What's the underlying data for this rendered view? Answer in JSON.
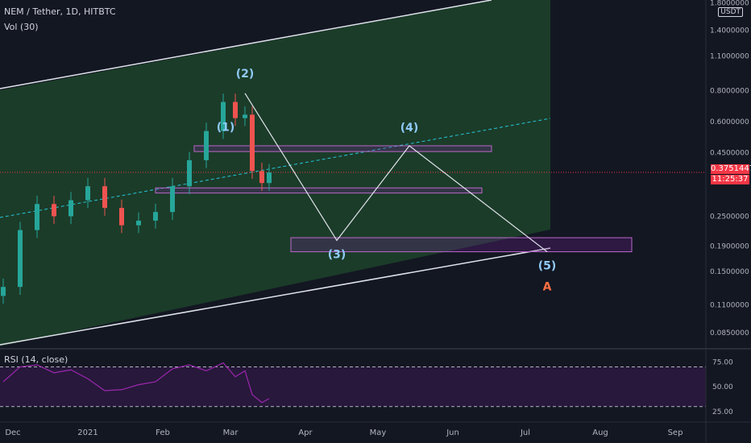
{
  "header": {
    "symbol": "NEM / Tether, 1D, HITBTC",
    "volume_indicator": "Vol (30)",
    "rsi_indicator": "RSI (14, close)",
    "currency": "USDT"
  },
  "price_axis": {
    "ticks": [
      {
        "value": 1.8,
        "label": "1.8000000"
      },
      {
        "value": 1.4,
        "label": "1.4000000"
      },
      {
        "value": 1.1,
        "label": "1.1000000"
      },
      {
        "value": 0.8,
        "label": "0.8000000"
      },
      {
        "value": 0.6,
        "label": "0.6000000"
      },
      {
        "value": 0.45,
        "label": "0.4500000"
      },
      {
        "value": 0.25,
        "label": "0.2500000"
      },
      {
        "value": 0.19,
        "label": "0.1900000"
      },
      {
        "value": 0.15,
        "label": "0.1500000"
      },
      {
        "value": 0.11,
        "label": "0.1100000"
      },
      {
        "value": 0.085,
        "label": "0.0850000"
      }
    ],
    "current_price": "0.3751447",
    "countdown": "11:25:37"
  },
  "rsi_axis": {
    "ticks": [
      {
        "value": 75,
        "label": "75.00"
      },
      {
        "value": 50,
        "label": "50.00"
      },
      {
        "value": 25,
        "label": "25.00"
      }
    ]
  },
  "time_axis": {
    "labels": [
      "Dec",
      "2021",
      "Feb",
      "Mar",
      "Apr",
      "May",
      "Jun",
      "Jul",
      "Aug",
      "Sep"
    ]
  },
  "wave_labels": [
    "(1)",
    "(2)",
    "(3)",
    "(4)",
    "(5)",
    "A"
  ],
  "chart_data": {
    "type": "candlestick",
    "title": "NEM / Tether, 1D, HITBTC",
    "scale": "log",
    "ylim": [
      0.075,
      1.85
    ],
    "rsi_ylim": [
      20,
      85
    ],
    "rsi_bands": [
      70,
      30
    ],
    "current_price": 0.3751447,
    "price_series": {
      "name": "NEM / Tether",
      "date": [
        "2020-11-27",
        "2020-12-04",
        "2020-12-11",
        "2020-12-18",
        "2020-12-25",
        "2021-01-01",
        "2021-01-08",
        "2021-01-15",
        "2021-01-22",
        "2021-01-29",
        "2021-02-05",
        "2021-02-12",
        "2021-02-19",
        "2021-02-26",
        "2021-03-03",
        "2021-03-07",
        "2021-03-10",
        "2021-03-14",
        "2021-03-17"
      ],
      "close": [
        0.13,
        0.22,
        0.28,
        0.25,
        0.29,
        0.33,
        0.27,
        0.23,
        0.24,
        0.26,
        0.33,
        0.42,
        0.55,
        0.72,
        0.62,
        0.64,
        0.38,
        0.34,
        0.375
      ]
    },
    "rsi_series": {
      "name": "RSI (14, close)",
      "date": [
        "2020-11-27",
        "2020-12-04",
        "2020-12-11",
        "2020-12-18",
        "2020-12-25",
        "2021-01-01",
        "2021-01-08",
        "2021-01-15",
        "2021-01-22",
        "2021-01-29",
        "2021-02-05",
        "2021-02-12",
        "2021-02-19",
        "2021-02-26",
        "2021-03-03",
        "2021-03-07",
        "2021-03-10",
        "2021-03-14",
        "2021-03-17"
      ],
      "values": [
        55,
        70,
        72,
        64,
        67,
        58,
        46,
        47,
        52,
        55,
        68,
        72,
        66,
        74,
        60,
        66,
        42,
        34,
        38
      ]
    },
    "elliott_projection": {
      "date": [
        "2021-03-07",
        "2021-04-14",
        "2021-05-14",
        "2021-07-10"
      ],
      "price": [
        0.78,
        0.2,
        0.48,
        0.18
      ],
      "labels": [
        "(2)",
        "(3)",
        "(4)",
        "(5)"
      ]
    },
    "zones": [
      {
        "start": "2021-02-14",
        "end": "2021-06-17",
        "low": 0.455,
        "high": 0.48
      },
      {
        "start": "2021-01-29",
        "end": "2021-06-13",
        "low": 0.31,
        "high": 0.325
      },
      {
        "start": "2021-03-26",
        "end": "2021-08-14",
        "low": 0.18,
        "high": 0.205
      }
    ]
  }
}
